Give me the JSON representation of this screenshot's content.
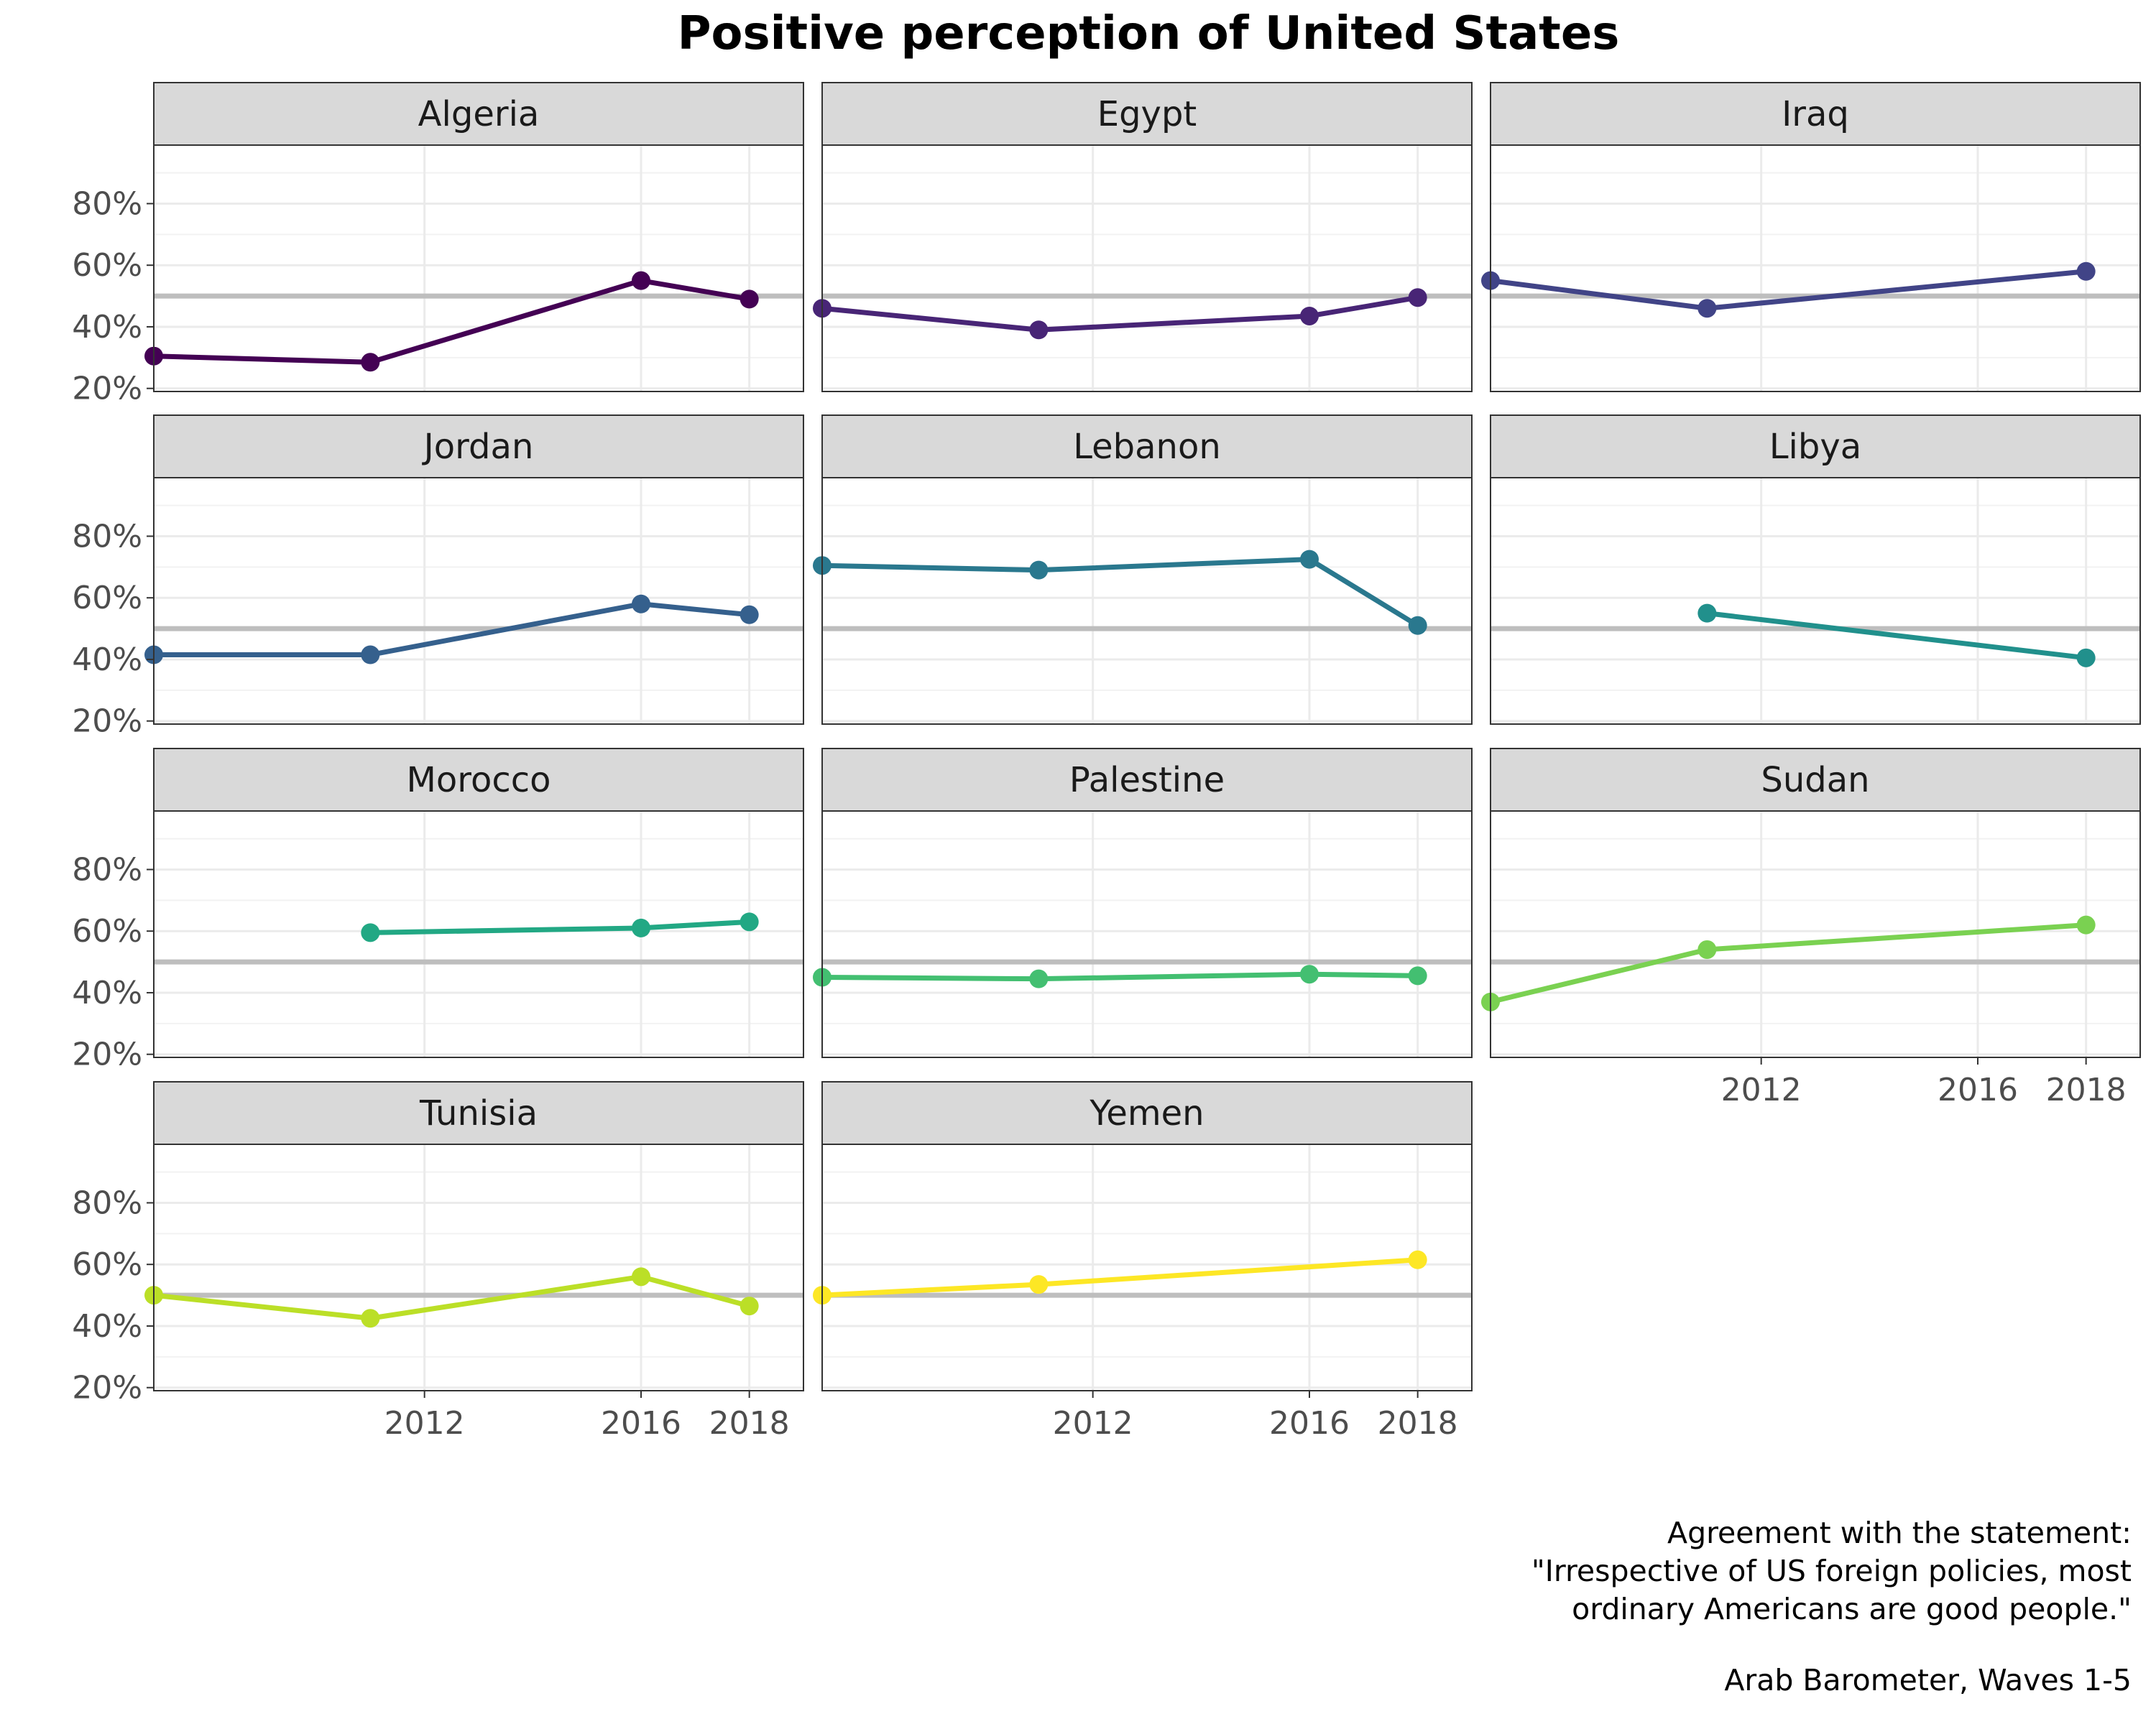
{
  "chart_data": {
    "type": "line",
    "title": "Positive perception of United States",
    "y_ticks": [
      "20%",
      "40%",
      "60%",
      "80%"
    ],
    "y_tick_values": [
      20,
      40,
      60,
      80
    ],
    "x_ticks": [
      "2012",
      "2016",
      "2018"
    ],
    "x_tick_values": [
      2012,
      2016,
      2018
    ],
    "xlim": [
      2007,
      2019
    ],
    "ylim": [
      19,
      99
    ],
    "reference_line": 50,
    "grid": true,
    "facets": [
      {
        "name": "Algeria",
        "color": "#440154",
        "points": [
          {
            "x": 2007,
            "y": 30.5
          },
          {
            "x": 2011,
            "y": 28.5
          },
          {
            "x": 2016,
            "y": 55.0
          },
          {
            "x": 2018,
            "y": 49.0
          }
        ]
      },
      {
        "name": "Egypt",
        "color": "#482576",
        "points": [
          {
            "x": 2007,
            "y": 46.0
          },
          {
            "x": 2011,
            "y": 39.0
          },
          {
            "x": 2016,
            "y": 43.5
          },
          {
            "x": 2018,
            "y": 49.5
          }
        ]
      },
      {
        "name": "Iraq",
        "color": "#414487",
        "points": [
          {
            "x": 2007,
            "y": 55.0
          },
          {
            "x": 2011,
            "y": 46.0
          },
          {
            "x": 2018,
            "y": 58.0
          }
        ]
      },
      {
        "name": "Jordan",
        "color": "#35608D",
        "points": [
          {
            "x": 2007,
            "y": 41.5
          },
          {
            "x": 2011,
            "y": 41.5
          },
          {
            "x": 2016,
            "y": 58.0
          },
          {
            "x": 2018,
            "y": 54.5
          }
        ]
      },
      {
        "name": "Lebanon",
        "color": "#2A788E",
        "points": [
          {
            "x": 2007,
            "y": 70.5
          },
          {
            "x": 2011,
            "y": 69.0
          },
          {
            "x": 2016,
            "y": 72.5
          },
          {
            "x": 2018,
            "y": 51.0
          }
        ]
      },
      {
        "name": "Libya",
        "color": "#21908C",
        "points": [
          {
            "x": 2011,
            "y": 55.0
          },
          {
            "x": 2018,
            "y": 40.5
          }
        ]
      },
      {
        "name": "Morocco",
        "color": "#22A884",
        "points": [
          {
            "x": 2011,
            "y": 59.5
          },
          {
            "x": 2016,
            "y": 61.0
          },
          {
            "x": 2018,
            "y": 63.0
          }
        ]
      },
      {
        "name": "Palestine",
        "color": "#43BF71",
        "points": [
          {
            "x": 2007,
            "y": 45.0
          },
          {
            "x": 2011,
            "y": 44.5
          },
          {
            "x": 2016,
            "y": 46.0
          },
          {
            "x": 2018,
            "y": 45.5
          }
        ]
      },
      {
        "name": "Sudan",
        "color": "#7AD151",
        "points": [
          {
            "x": 2007,
            "y": 37.0
          },
          {
            "x": 2011,
            "y": 54.0
          },
          {
            "x": 2018,
            "y": 62.0
          }
        ]
      },
      {
        "name": "Tunisia",
        "color": "#BBDF27",
        "points": [
          {
            "x": 2007,
            "y": 50.0
          },
          {
            "x": 2011,
            "y": 42.5
          },
          {
            "x": 2016,
            "y": 56.0
          },
          {
            "x": 2018,
            "y": 46.5
          }
        ]
      },
      {
        "name": "Yemen",
        "color": "#FDE725",
        "points": [
          {
            "x": 2007,
            "y": 50.0
          },
          {
            "x": 2011,
            "y": 53.5
          },
          {
            "x": 2018,
            "y": 61.5
          }
        ]
      }
    ]
  },
  "caption": {
    "lines": [
      "Agreement with the statement:",
      "\"Irrespective of US foreign policies, most",
      "ordinary Americans are good people.\""
    ],
    "source": "Arab Barometer, Waves 1-5"
  }
}
